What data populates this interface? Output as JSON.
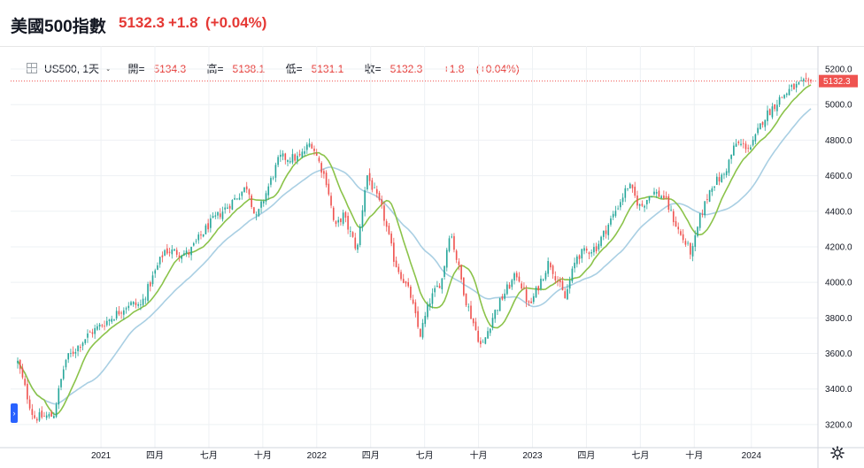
{
  "header": {
    "title": "美國500指數",
    "price": "5132.3",
    "change": "+1.8",
    "change_pct": "(+0.04%)"
  },
  "legend": {
    "symbol": "US500, 1天",
    "open_label": "開=",
    "open": "5134.3",
    "high_label": "高=",
    "high": "5138.1",
    "low_label": "低=",
    "low": "5131.1",
    "close_label": "收=",
    "close": "5132.3",
    "change": "+1.8",
    "change_pct": "(+0.04%)"
  },
  "colors": {
    "up": "#26a69a",
    "down": "#ef5350",
    "ma_fast": "#8bc34a",
    "ma_slow": "#a9cfe3",
    "last_price": "#ef5350",
    "grid": "#eef1f4"
  },
  "chart_data": {
    "type": "candlestick",
    "title": "",
    "ylim": [
      3100,
      5260
    ],
    "y_ticks": [
      3200.0,
      3400.0,
      3600.0,
      3800.0,
      4000.0,
      4200.0,
      4400.0,
      4600.0,
      4800.0,
      5000.0,
      5200.0
    ],
    "last_price": 5132.3,
    "x_ticks": [
      "2021",
      "四月",
      "七月",
      "十月",
      "2022",
      "四月",
      "七月",
      "十月",
      "2023",
      "四月",
      "七月",
      "十月",
      "2024"
    ],
    "x_tick_positions": [
      0.105,
      0.173,
      0.241,
      0.309,
      0.377,
      0.445,
      0.513,
      0.581,
      0.649,
      0.717,
      0.785,
      0.853,
      0.925
    ],
    "anchors": [
      [
        0.0,
        3550
      ],
      [
        0.012,
        3360
      ],
      [
        0.02,
        3240
      ],
      [
        0.045,
        3250
      ],
      [
        0.06,
        3560
      ],
      [
        0.09,
        3710
      ],
      [
        0.115,
        3790
      ],
      [
        0.14,
        3880
      ],
      [
        0.155,
        3870
      ],
      [
        0.185,
        4180
      ],
      [
        0.215,
        4160
      ],
      [
        0.24,
        4320
      ],
      [
        0.265,
        4430
      ],
      [
        0.29,
        4545
      ],
      [
        0.3,
        4350
      ],
      [
        0.33,
        4700
      ],
      [
        0.355,
        4700
      ],
      [
        0.37,
        4790
      ],
      [
        0.39,
        4560
      ],
      [
        0.4,
        4300
      ],
      [
        0.41,
        4380
      ],
      [
        0.428,
        4180
      ],
      [
        0.44,
        4610
      ],
      [
        0.46,
        4400
      ],
      [
        0.475,
        4120
      ],
      [
        0.495,
        3930
      ],
      [
        0.507,
        3700
      ],
      [
        0.52,
        3900
      ],
      [
        0.535,
        4020
      ],
      [
        0.545,
        4300
      ],
      [
        0.565,
        3900
      ],
      [
        0.585,
        3630
      ],
      [
        0.6,
        3820
      ],
      [
        0.615,
        3950
      ],
      [
        0.63,
        4050
      ],
      [
        0.645,
        3860
      ],
      [
        0.67,
        4120
      ],
      [
        0.69,
        3910
      ],
      [
        0.705,
        4150
      ],
      [
        0.73,
        4200
      ],
      [
        0.75,
        4370
      ],
      [
        0.77,
        4550
      ],
      [
        0.785,
        4420
      ],
      [
        0.8,
        4510
      ],
      [
        0.815,
        4480
      ],
      [
        0.835,
        4270
      ],
      [
        0.85,
        4160
      ],
      [
        0.86,
        4360
      ],
      [
        0.875,
        4550
      ],
      [
        0.89,
        4600
      ],
      [
        0.905,
        4780
      ],
      [
        0.925,
        4760
      ],
      [
        0.94,
        4920
      ],
      [
        0.96,
        5030
      ],
      [
        0.975,
        5090
      ],
      [
        1.0,
        5132
      ]
    ]
  }
}
